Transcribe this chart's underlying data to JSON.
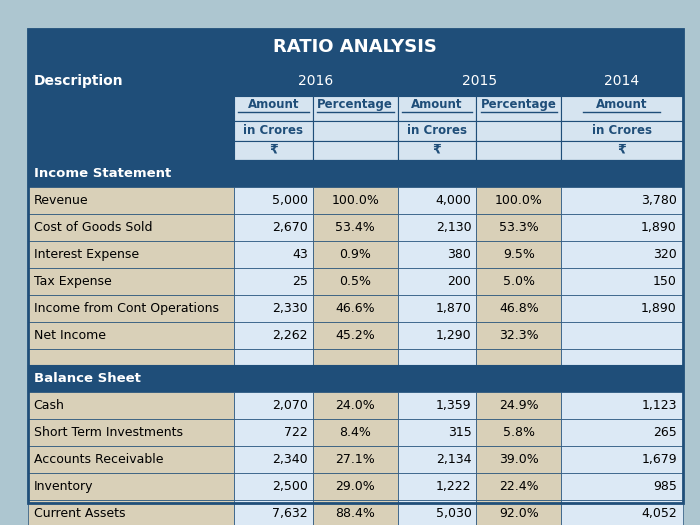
{
  "title": "RATIO ANALYSIS",
  "bg_color": "#adc6d0",
  "header_dark": "#1f4e79",
  "header_light": "#d6e4f0",
  "row_tan": "#d9d0b8",
  "row_light_blue": "#dce9f5",
  "border_color": "#1f4e79",
  "sub_headers_row1": [
    "Amount",
    "Percentage",
    "Amount",
    "Percentage",
    "Amount"
  ],
  "sub_headers_row2": [
    "in Crores",
    "",
    "in Crores",
    "",
    "in Crores"
  ],
  "sub_headers_row3": [
    "₹",
    "",
    "₹",
    "",
    "₹"
  ],
  "income_statement_rows": [
    {
      "desc": "Revenue",
      "a16": "5,000",
      "p16": "100.0%",
      "a15": "4,000",
      "p15": "100.0%",
      "a14": "3,780"
    },
    {
      "desc": "Cost of Goods Sold",
      "a16": "2,670",
      "p16": "53.4%",
      "a15": "2,130",
      "p15": "53.3%",
      "a14": "1,890"
    },
    {
      "desc": "Interest Expense",
      "a16": "43",
      "p16": "0.9%",
      "a15": "380",
      "p15": "9.5%",
      "a14": "320"
    },
    {
      "desc": "Tax Expense",
      "a16": "25",
      "p16": "0.5%",
      "a15": "200",
      "p15": "5.0%",
      "a14": "150"
    },
    {
      "desc": "Income from Cont Operations",
      "a16": "2,330",
      "p16": "46.6%",
      "a15": "1,870",
      "p15": "46.8%",
      "a14": "1,890"
    },
    {
      "desc": "Net Income",
      "a16": "2,262",
      "p16": "45.2%",
      "a15": "1,290",
      "p15": "32.3%",
      "a14": ""
    }
  ],
  "balance_sheet_rows": [
    {
      "desc": "Cash",
      "a16": "2,070",
      "p16": "24.0%",
      "a15": "1,359",
      "p15": "24.9%",
      "a14": "1,123"
    },
    {
      "desc": "Short Term Investments",
      "a16": "722",
      "p16": "8.4%",
      "a15": "315",
      "p15": "5.8%",
      "a14": "265"
    },
    {
      "desc": "Accounts Receivable",
      "a16": "2,340",
      "p16": "27.1%",
      "a15": "2,134",
      "p15": "39.0%",
      "a14": "1,679"
    },
    {
      "desc": "Inventory",
      "a16": "2,500",
      "p16": "29.0%",
      "a15": "1,222",
      "p15": "22.4%",
      "a14": "985"
    },
    {
      "desc": "Current Assets",
      "a16": "7,632",
      "p16": "88.4%",
      "a15": "5,030",
      "p15": "92.0%",
      "a14": "4,052"
    }
  ]
}
